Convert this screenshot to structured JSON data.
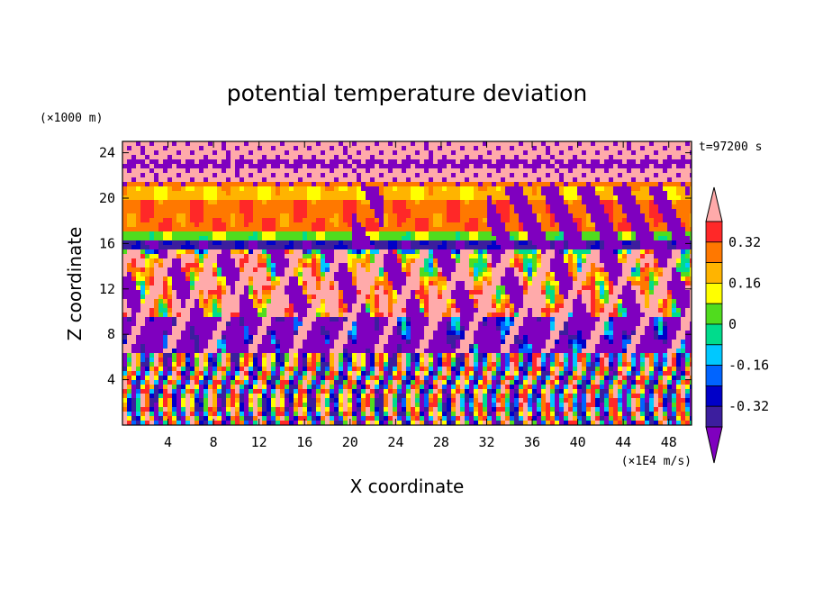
{
  "chart_data": {
    "type": "heatmap",
    "title": "potential temperature deviation",
    "xlabel": "X coordinate",
    "ylabel": "Z coordinate",
    "x_units": "(×1E4 m/s)",
    "y_units": "(×1000 m)",
    "time_label": "t=97200 s",
    "xlim": [
      0,
      50
    ],
    "ylim": [
      0,
      25
    ],
    "x_ticks": [
      4,
      8,
      12,
      16,
      20,
      24,
      28,
      32,
      36,
      40,
      44,
      48
    ],
    "y_ticks": [
      4,
      8,
      12,
      16,
      20,
      24
    ],
    "colorbar": {
      "labels": [
        "0.32",
        "0.16",
        "0",
        "-0.16",
        "-0.32"
      ],
      "label_values": [
        0.32,
        0.16,
        0,
        -0.16,
        -0.32
      ],
      "levels": [
        -0.4,
        -0.32,
        -0.24,
        -0.16,
        -0.08,
        0,
        0.08,
        0.16,
        0.24,
        0.32,
        0.4
      ],
      "colors": [
        "#7f00bf",
        "#3c1e9e",
        "#0000c8",
        "#0064ff",
        "#00c8ff",
        "#00dc8c",
        "#50dc1e",
        "#ffff00",
        "#ffb400",
        "#ff7800",
        "#ff2828",
        "#ffaaaa"
      ],
      "extend": "both"
    },
    "bands": [
      {
        "z": [
          23.6,
          25
        ],
        "value": 0.45
      },
      {
        "z": [
          22.6,
          23.6
        ],
        "value": -0.45
      },
      {
        "z": [
          21.6,
          22.6
        ],
        "value": 0.45
      },
      {
        "z": [
          21.0,
          21.6
        ],
        "value": 0.3
      },
      {
        "z": [
          20.0,
          21.0
        ],
        "value": 0.18
      },
      {
        "z": [
          17.0,
          20.0
        ],
        "value": 0.3
      },
      {
        "z": [
          16.3,
          17.0
        ],
        "value": 0.05
      },
      {
        "z": [
          15.6,
          16.3
        ],
        "value": -0.35
      },
      {
        "z": [
          15.0,
          15.6
        ],
        "value": 0.0
      },
      {
        "z": [
          13.0,
          15.0
        ],
        "value": 0.22
      },
      {
        "z": [
          9.5,
          13.0
        ],
        "value": 0.3
      },
      {
        "z": [
          6.5,
          9.5
        ],
        "value": -0.45
      },
      {
        "z": [
          0,
          6.5
        ],
        "value": 0.0
      }
    ]
  }
}
